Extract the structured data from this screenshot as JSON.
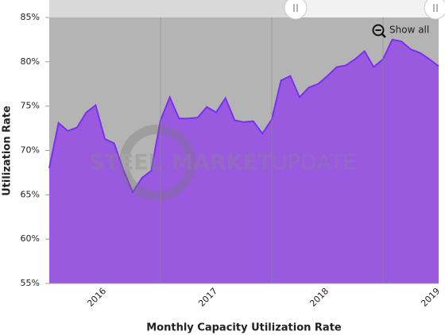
{
  "chart_data": {
    "type": "area",
    "x_label": "Monthly Capacity Utilization Rate",
    "y_label": "Utilization Rate",
    "watermark": [
      "STEEL",
      "MARKET",
      "UPDATE"
    ],
    "button": "Show all",
    "categories": [
      null,
      null,
      null,
      null,
      null,
      null,
      "2016",
      null,
      null,
      null,
      null,
      null,
      null,
      null,
      null,
      null,
      null,
      null,
      "2017",
      null,
      null,
      null,
      null,
      null,
      null,
      null,
      null,
      null,
      null,
      null,
      "2018",
      null,
      null,
      null,
      null,
      null,
      null,
      null,
      null,
      null,
      null,
      null,
      "2019"
    ],
    "series": [
      {
        "name": "Utilization Rate",
        "color": "#7b2ff0",
        "fill": "#9a5ae0",
        "values": [
          68.0,
          73.1,
          72.2,
          72.6,
          74.3,
          75.1,
          71.3,
          70.8,
          67.8,
          65.3,
          66.9,
          67.7,
          73.4,
          76.0,
          73.6,
          73.6,
          73.7,
          74.9,
          74.3,
          75.9,
          73.4,
          73.2,
          73.3,
          71.9,
          73.5,
          77.9,
          78.4,
          76.0,
          77.1,
          77.5,
          78.4,
          79.4,
          79.6,
          80.3,
          81.2,
          79.4,
          80.3,
          82.5,
          82.3,
          81.4,
          81.0,
          80.3,
          79.5
        ]
      }
    ],
    "ylim": [
      55,
      85
    ],
    "yticks": [
      {
        "value": 55,
        "label": "55%"
      },
      {
        "value": 60,
        "label": "60%"
      },
      {
        "value": 65,
        "label": "65%"
      },
      {
        "value": 70,
        "label": "70%"
      },
      {
        "value": 75,
        "label": "75%"
      },
      {
        "value": 80,
        "label": "80%"
      },
      {
        "value": 85,
        "label": "85%"
      }
    ]
  }
}
